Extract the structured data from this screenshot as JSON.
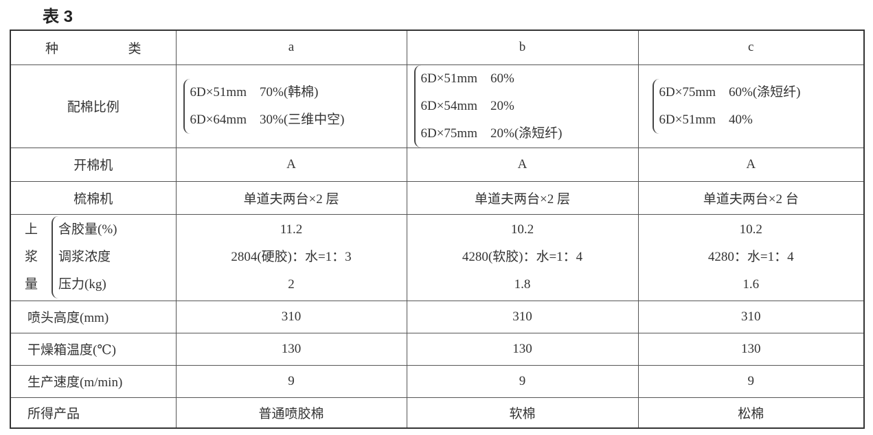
{
  "caption": "表 3",
  "header": {
    "label_left": "种",
    "label_right": "类",
    "columns": [
      "a",
      "b",
      "c"
    ]
  },
  "blend_row": {
    "label": "配棉比例",
    "a": [
      "6D×51mm　70%(韩棉)",
      "6D×64mm　30%(三维中空)"
    ],
    "b": [
      "6D×51mm　60%",
      "6D×54mm　20%",
      "6D×75mm　20%(涤短纤)"
    ],
    "c": [
      "6D×75mm　60%(涤短纤)",
      "6D×51mm　40%"
    ]
  },
  "opener_row": {
    "label": "开棉机",
    "values": [
      "A",
      "A",
      "A"
    ]
  },
  "carding_row": {
    "label": "梳棉机",
    "values": [
      "单道夫两台×2 层",
      "单道夫两台×2 层",
      "单道夫两台×2 台"
    ]
  },
  "sizing_group": {
    "label_chars": [
      "上",
      "浆",
      "量"
    ],
    "sub_labels": [
      "含胶量(%)",
      "调浆浓度",
      "压力(kg)"
    ],
    "a": [
      "11.2",
      "2804(硬胶)：水=1：3",
      "2"
    ],
    "b": [
      "10.2",
      "4280(软胶)：水=1：4",
      "1.8"
    ],
    "c": [
      "10.2",
      "4280：水=1：4",
      "1.6"
    ]
  },
  "rows": [
    {
      "label": "喷头高度(mm)",
      "values": [
        "310",
        "310",
        "310"
      ]
    },
    {
      "label": "干燥箱温度(℃)",
      "values": [
        "130",
        "130",
        "130"
      ]
    },
    {
      "label": "生产速度(m/min)",
      "values": [
        "9",
        "9",
        "9"
      ]
    },
    {
      "label": "所得产品",
      "values": [
        "普通喷胶棉",
        "软棉",
        "松棉"
      ]
    }
  ]
}
